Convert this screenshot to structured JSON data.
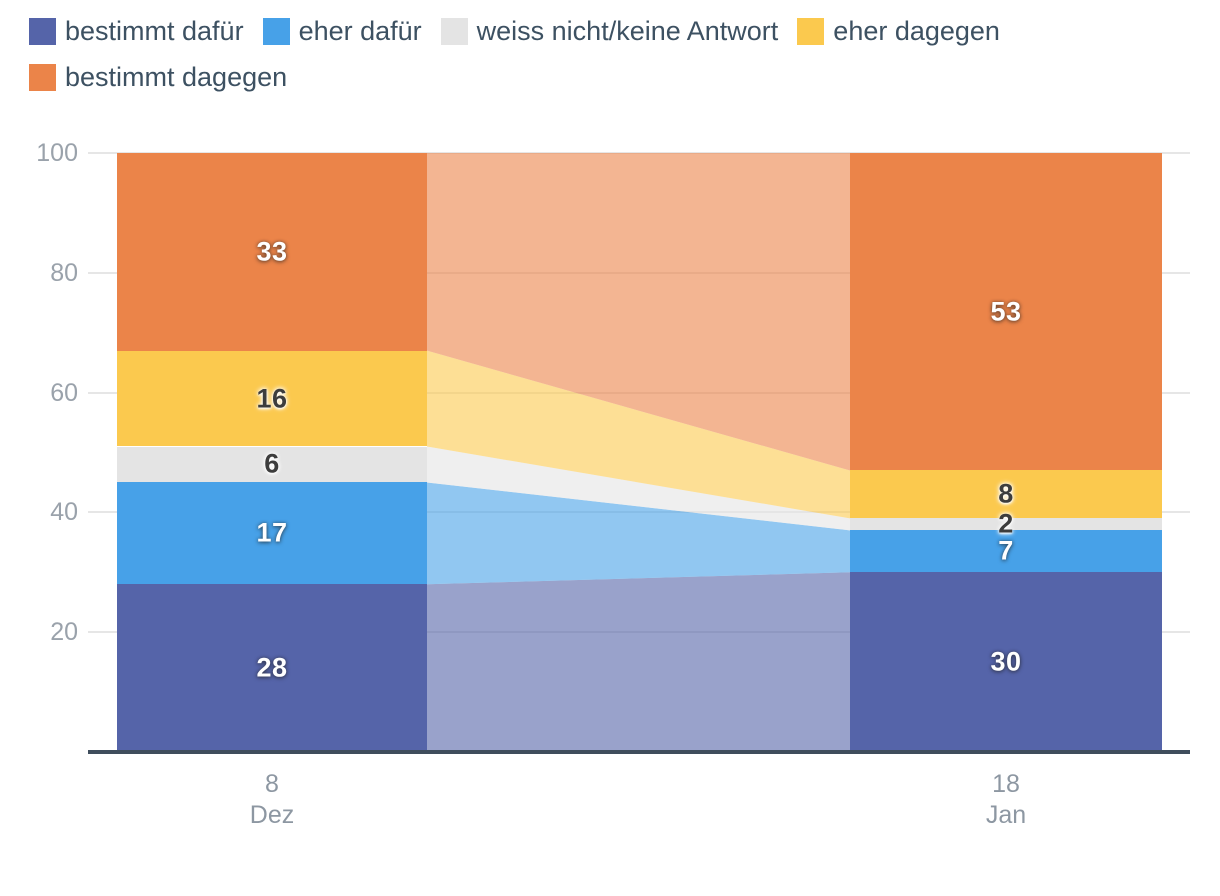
{
  "page": {
    "background": "#ffffff"
  },
  "colors": {
    "axis_line": "#3f4d5c",
    "grid_line": "#e6e6e6",
    "ytick_text": "#9aa2ab",
    "xtick_text": "#8d97a2",
    "legend_text": "#3d5162",
    "value_light": "#ffffff",
    "value_dark": "#3d3d3d"
  },
  "chart_data": {
    "type": "bar",
    "stacked": true,
    "variant": "two-stacked-columns-with-translucent-connector-bands",
    "title": "",
    "categories": [
      {
        "line1": "8",
        "line2": "Dez"
      },
      {
        "line1": "18",
        "line2": "Jan"
      }
    ],
    "series": [
      {
        "name": "bestimmt dafür",
        "color": "#5564a9",
        "label_style": "light",
        "values": [
          28,
          30
        ]
      },
      {
        "name": "eher dafür",
        "color": "#47a1e8",
        "label_style": "light",
        "values": [
          17,
          7
        ]
      },
      {
        "name": "weiss nicht/keine Antwort",
        "color": "#e4e4e4",
        "label_style": "dark",
        "values": [
          6,
          2
        ]
      },
      {
        "name": "eher dagegen",
        "color": "#fbc94e",
        "label_style": "dark",
        "values": [
          16,
          8
        ]
      },
      {
        "name": "bestimmt dagegen",
        "color": "#eb8449",
        "label_style": "light",
        "values": [
          33,
          53
        ]
      }
    ],
    "ylim": [
      0,
      100
    ],
    "yticks": [
      20,
      40,
      60,
      80,
      100
    ],
    "grid": true,
    "legend_position": "top-left",
    "band_opacity": 0.6
  }
}
